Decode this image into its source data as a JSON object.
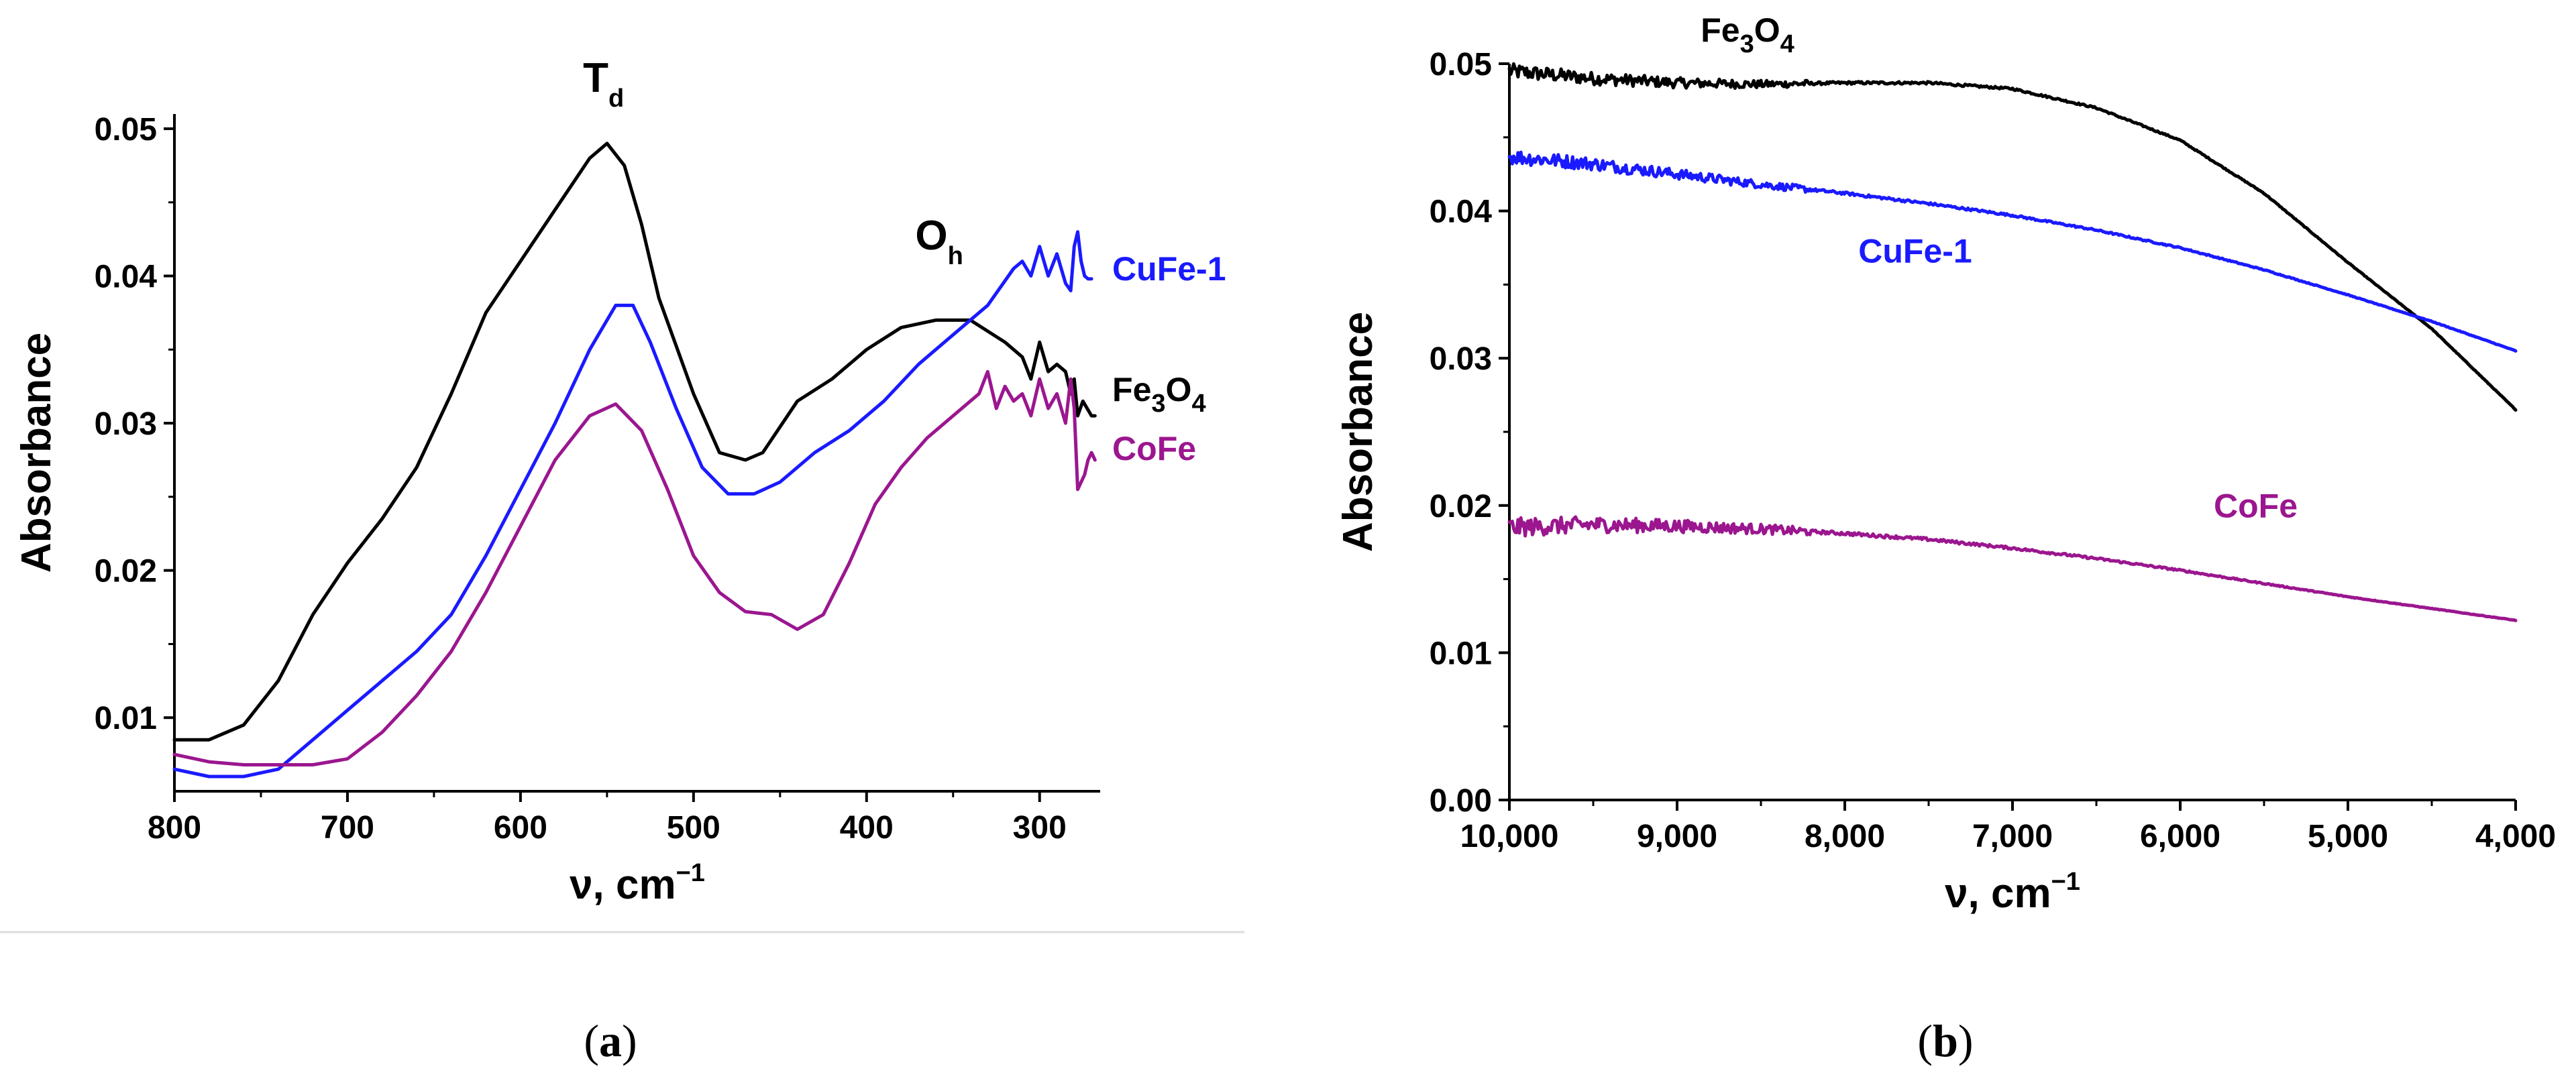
{
  "chart_data": [
    {
      "panel": "a",
      "caption_letter": "a",
      "type": "line",
      "xlabel": "ν, cm",
      "xlabel_sup": "−1",
      "ylabel": "Absorbance",
      "xlim": [
        800,
        265
      ],
      "ylim": [
        0.005,
        0.051
      ],
      "xticks": [
        800,
        700,
        600,
        500,
        400,
        300
      ],
      "xtick_labels": [
        "800",
        "700",
        "600",
        "500",
        "400",
        "300"
      ],
      "yticks": [
        0.01,
        0.02,
        0.03,
        0.04,
        0.05
      ],
      "ytick_labels": [
        "0.01",
        "0.02",
        "0.03",
        "0.04",
        "0.05"
      ],
      "annotations": [
        {
          "text": "T",
          "sub": "d",
          "x": 552,
          "y": 0.0525
        },
        {
          "text": "O",
          "sub": "h",
          "x": 358,
          "y": 0.0418
        }
      ],
      "series": [
        {
          "name": "Fe3O4",
          "label_parts": [
            "Fe",
            "3",
            "O",
            "4"
          ],
          "color": "#000000",
          "label_pos": [
            258,
            0.0315
          ],
          "x": [
            800,
            780,
            760,
            740,
            720,
            700,
            680,
            660,
            640,
            620,
            600,
            580,
            560,
            550,
            540,
            530,
            520,
            500,
            485,
            470,
            460,
            440,
            420,
            400,
            380,
            360,
            340,
            320,
            310,
            305,
            300,
            295,
            290,
            285,
            282,
            280,
            278,
            275,
            270,
            268
          ],
          "y": [
            0.0085,
            0.0085,
            0.0095,
            0.0125,
            0.017,
            0.0205,
            0.0235,
            0.027,
            0.032,
            0.0375,
            0.041,
            0.0445,
            0.048,
            0.049,
            0.0475,
            0.0435,
            0.0385,
            0.032,
            0.028,
            0.0275,
            0.028,
            0.0315,
            0.033,
            0.035,
            0.0365,
            0.037,
            0.037,
            0.0355,
            0.0345,
            0.033,
            0.0355,
            0.0335,
            0.034,
            0.0335,
            0.032,
            0.033,
            0.0305,
            0.0315,
            0.0305,
            0.0305
          ]
        },
        {
          "name": "CuFe-1",
          "label_parts": [
            "CuFe-1"
          ],
          "color": "#1a1aff",
          "label_pos": [
            258,
            0.0397
          ],
          "x": [
            800,
            780,
            760,
            740,
            720,
            700,
            680,
            660,
            640,
            620,
            600,
            580,
            560,
            545,
            535,
            525,
            510,
            495,
            480,
            465,
            450,
            430,
            410,
            390,
            370,
            350,
            330,
            315,
            310,
            305,
            300,
            295,
            290,
            285,
            282,
            280,
            278,
            276,
            274,
            272,
            270
          ],
          "y": [
            0.0065,
            0.006,
            0.006,
            0.0065,
            0.0085,
            0.0105,
            0.0125,
            0.0145,
            0.017,
            0.021,
            0.0255,
            0.03,
            0.035,
            0.038,
            0.038,
            0.0355,
            0.031,
            0.027,
            0.0252,
            0.0252,
            0.026,
            0.028,
            0.0295,
            0.0315,
            0.034,
            0.036,
            0.038,
            0.0405,
            0.041,
            0.04,
            0.042,
            0.04,
            0.0415,
            0.0395,
            0.039,
            0.042,
            0.043,
            0.041,
            0.04,
            0.0398,
            0.0398
          ]
        },
        {
          "name": "CoFe",
          "label_parts": [
            "CoFe"
          ],
          "color": "#9b168f",
          "label_pos": [
            258,
            0.0275
          ],
          "x": [
            800,
            780,
            760,
            740,
            720,
            700,
            680,
            660,
            640,
            620,
            600,
            580,
            560,
            545,
            530,
            515,
            500,
            485,
            470,
            455,
            440,
            425,
            410,
            395,
            380,
            365,
            350,
            335,
            330,
            325,
            320,
            315,
            310,
            305,
            300,
            295,
            290,
            285,
            282,
            280,
            278,
            276,
            274,
            272,
            270,
            268
          ],
          "y": [
            0.0075,
            0.007,
            0.0068,
            0.0068,
            0.0068,
            0.0072,
            0.009,
            0.0115,
            0.0145,
            0.0185,
            0.023,
            0.0275,
            0.0305,
            0.0313,
            0.0295,
            0.0255,
            0.021,
            0.0185,
            0.0172,
            0.017,
            0.016,
            0.017,
            0.0205,
            0.0245,
            0.027,
            0.029,
            0.0305,
            0.032,
            0.0335,
            0.031,
            0.0325,
            0.0315,
            0.032,
            0.0305,
            0.033,
            0.031,
            0.032,
            0.03,
            0.033,
            0.031,
            0.0255,
            0.026,
            0.0265,
            0.0275,
            0.028,
            0.0275
          ]
        }
      ]
    },
    {
      "panel": "b",
      "caption_letter": "b",
      "type": "line",
      "xlabel": "ν, cm",
      "xlabel_sup": "−1",
      "ylabel": "Absorbance",
      "xlim": [
        10000,
        4000
      ],
      "ylim": [
        0,
        0.05
      ],
      "xticks": [
        10000,
        9000,
        8000,
        7000,
        6000,
        5000,
        4000
      ],
      "xtick_labels": [
        "10,000",
        "9,000",
        "8,000",
        "7,000",
        "6,000",
        "5,000",
        "4,000"
      ],
      "yticks": [
        0.0,
        0.01,
        0.02,
        0.03,
        0.04,
        0.05
      ],
      "ytick_labels": [
        "0.00",
        "0.01",
        "0.02",
        "0.03",
        "0.04",
        "0.05"
      ],
      "series": [
        {
          "name": "Fe3O4",
          "label_parts": [
            "Fe",
            "3",
            "O",
            "4"
          ],
          "color": "#000000",
          "label_pos": [
            8580,
            0.0515
          ],
          "noise": 0.0004,
          "x": [
            10000,
            9500,
            9000,
            8500,
            8000,
            7500,
            7000,
            6500,
            6000,
            5500,
            5000,
            4500,
            4000
          ],
          "y": [
            0.0495,
            0.049,
            0.0487,
            0.0486,
            0.0487,
            0.0487,
            0.0483,
            0.047,
            0.0448,
            0.0412,
            0.0365,
            0.032,
            0.0265
          ]
        },
        {
          "name": "CuFe-1",
          "label_parts": [
            "CuFe-1"
          ],
          "color": "#1a1aff",
          "label_pos": [
            7580,
            0.0365
          ],
          "noise": 0.0004,
          "x": [
            10000,
            9500,
            9000,
            8500,
            8000,
            7500,
            7000,
            6500,
            6000,
            5500,
            5000,
            4500,
            4000
          ],
          "y": [
            0.0437,
            0.0432,
            0.0425,
            0.0418,
            0.0412,
            0.0405,
            0.0397,
            0.0387,
            0.0375,
            0.036,
            0.0343,
            0.0325,
            0.0305
          ]
        },
        {
          "name": "CoFe",
          "label_parts": [
            "CoFe"
          ],
          "color": "#9b168f",
          "label_pos": [
            5550,
            0.0192
          ],
          "noise": 0.0005,
          "x": [
            10000,
            9500,
            9000,
            8500,
            8000,
            7500,
            7000,
            6500,
            6000,
            5500,
            5000,
            4500,
            4000
          ],
          "y": [
            0.0185,
            0.0187,
            0.0186,
            0.0184,
            0.0181,
            0.0177,
            0.0171,
            0.0164,
            0.0156,
            0.0147,
            0.0138,
            0.013,
            0.0122
          ]
        }
      ]
    }
  ]
}
